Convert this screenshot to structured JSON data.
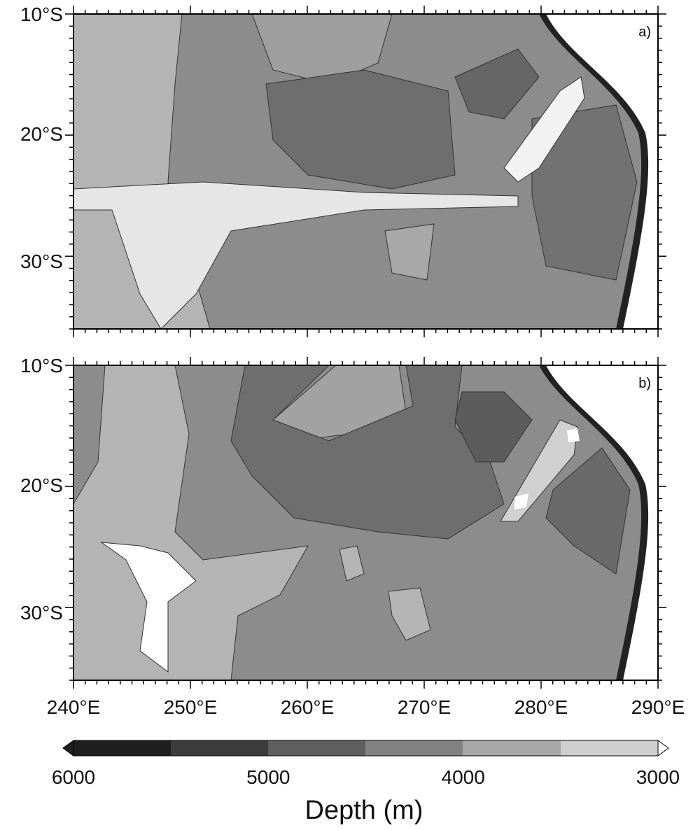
{
  "panels": [
    {
      "label": "a)",
      "lat_ticks": [
        "10°S",
        "20°S",
        "30°S"
      ]
    },
    {
      "label": "b)",
      "lat_ticks": [
        "10°S",
        "20°S",
        "30°S"
      ]
    }
  ],
  "lon_ticks": [
    "240°E",
    "250°E",
    "260°E",
    "270°E",
    "280°E",
    "290°E"
  ],
  "colorbar": {
    "ticks": [
      "6000",
      "5000",
      "4000",
      "3000"
    ],
    "label": "Depth (m)"
  }
}
